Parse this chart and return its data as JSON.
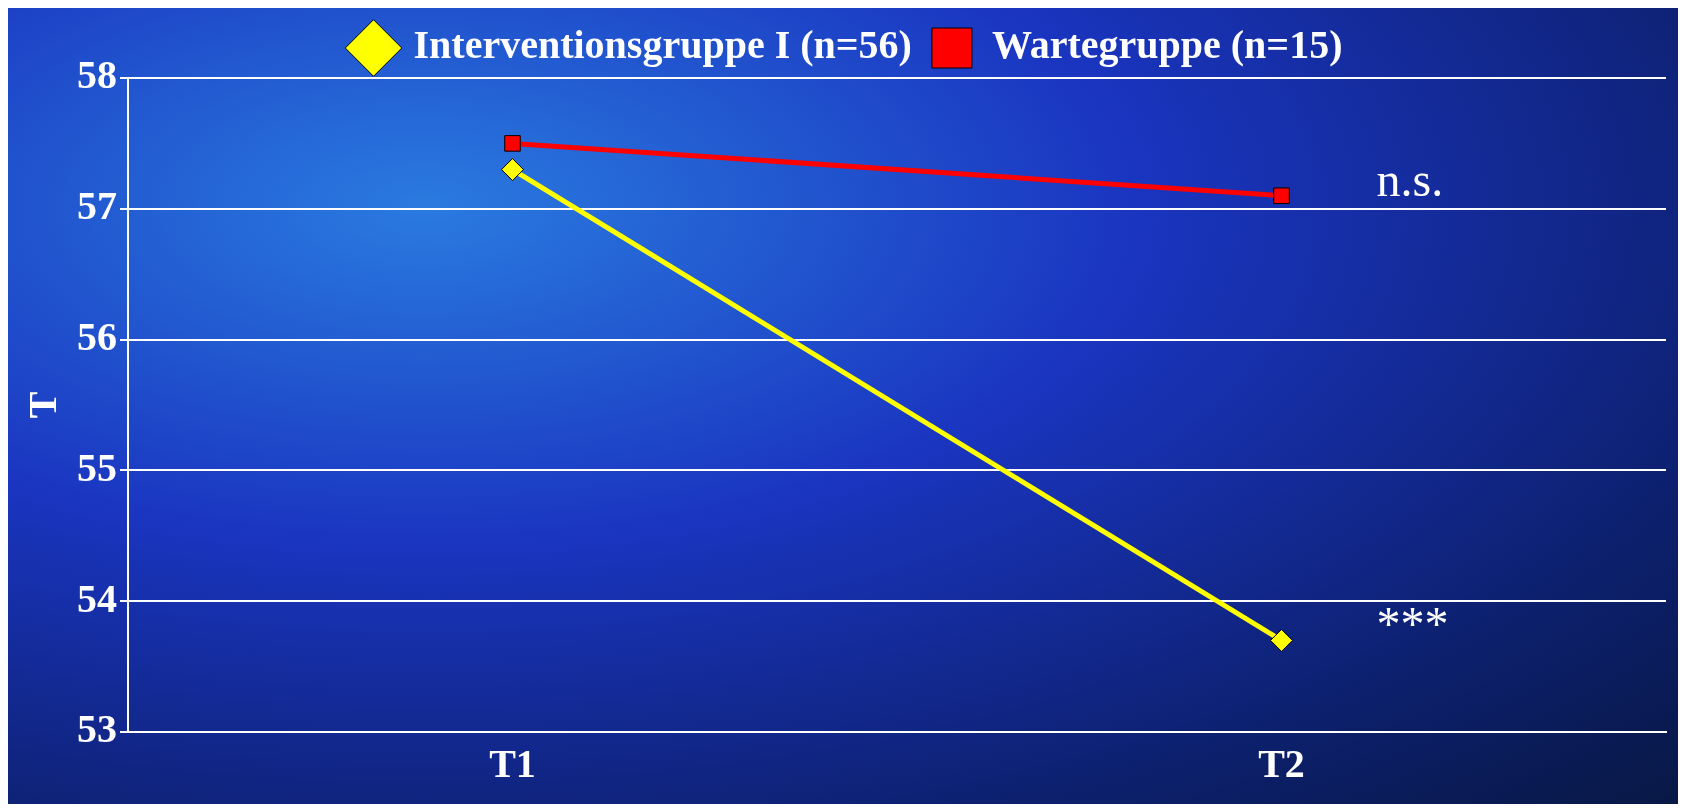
{
  "chart_data": {
    "type": "line",
    "ylabel": "T",
    "categories": [
      "T1",
      "T2"
    ],
    "series": [
      {
        "name": "Interventionsgruppe I (n=56)",
        "color": "#ffff00",
        "values": [
          57.3,
          53.7
        ],
        "marker": "diamond"
      },
      {
        "name": "Wartegruppe (n=15)",
        "color": "#ff0000",
        "values": [
          57.5,
          57.1
        ],
        "marker": "square"
      }
    ],
    "ylim": [
      53,
      58
    ],
    "yticks": [
      53,
      54,
      55,
      56,
      57,
      58
    ],
    "grid": "y",
    "legend": "top",
    "line_style": "solid",
    "annotations": [
      {
        "text": "n.s.",
        "x": "T2",
        "y": 57.1
      },
      {
        "text": "***",
        "x": "T2",
        "y": 53.7
      }
    ]
  }
}
